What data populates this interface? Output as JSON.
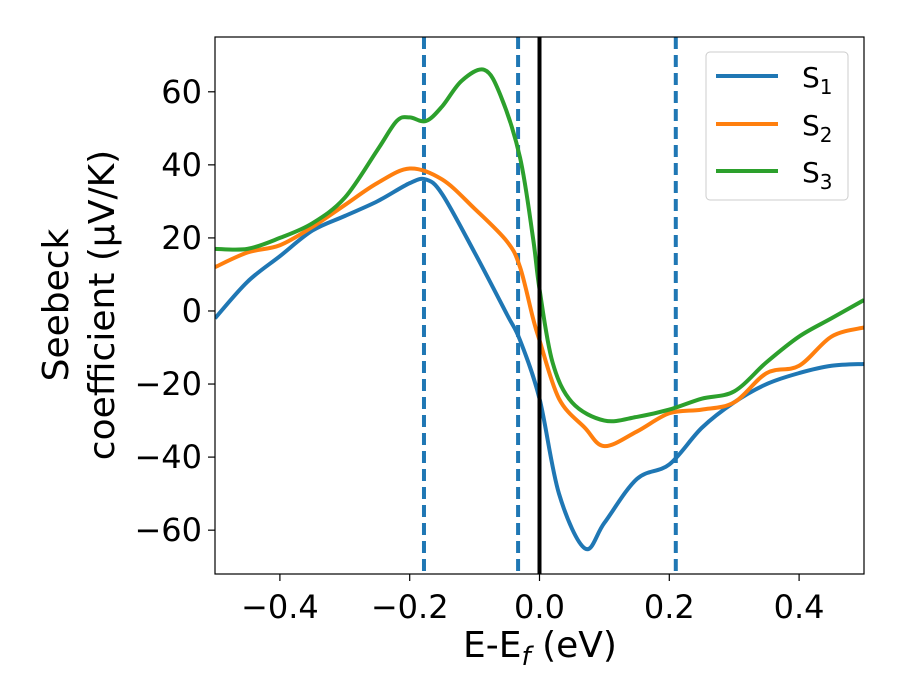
{
  "chart_data": {
    "type": "line",
    "xlabel_main": "E-E",
    "xlabel_sub": "f",
    "xlabel_unit": " (eV)",
    "ylabel_line1": "Seebeck",
    "ylabel_line2": "coefficient  (μV/K)",
    "xlim": [
      -0.5,
      0.5
    ],
    "ylim": [
      -72,
      75
    ],
    "xticks": [
      -0.4,
      -0.2,
      0.0,
      0.2,
      0.4
    ],
    "xtick_labels": [
      "−0.4",
      "−0.2",
      "0.0",
      "0.2",
      "0.4"
    ],
    "yticks": [
      60,
      40,
      20,
      0,
      -20,
      -40,
      -60
    ],
    "ytick_labels": [
      "60",
      "40",
      "20",
      "0",
      "−20",
      "−40",
      "−60"
    ],
    "vlines_dashed": [
      -0.178,
      -0.033,
      0.21
    ],
    "vline_solid": 0.0,
    "legend_position": "top-right",
    "series": [
      {
        "name": "S",
        "sub": "1",
        "color": "#1f77b4",
        "x": [
          -0.5,
          -0.45,
          -0.4,
          -0.35,
          -0.3,
          -0.25,
          -0.2,
          -0.175,
          -0.15,
          -0.1,
          -0.05,
          -0.03,
          0.0,
          0.03,
          0.07,
          0.1,
          0.15,
          0.2,
          0.25,
          0.3,
          0.35,
          0.4,
          0.45,
          0.5
        ],
        "y": [
          -2,
          8,
          15,
          22,
          26,
          30,
          35,
          36,
          32,
          16,
          -1,
          -8,
          -24,
          -50,
          -65,
          -58,
          -46,
          -42,
          -32,
          -25,
          -20,
          -17,
          -15,
          -14.5
        ]
      },
      {
        "name": "S",
        "sub": "2",
        "color": "#ff7f0e",
        "x": [
          -0.5,
          -0.45,
          -0.4,
          -0.35,
          -0.3,
          -0.25,
          -0.2,
          -0.15,
          -0.1,
          -0.05,
          -0.03,
          -0.01,
          0.0,
          0.03,
          0.07,
          0.1,
          0.15,
          0.2,
          0.25,
          0.3,
          0.35,
          0.4,
          0.45,
          0.5
        ],
        "y": [
          12,
          16,
          18,
          23,
          29,
          35,
          39,
          36,
          28,
          19,
          12,
          -2,
          -8,
          -24,
          -32,
          -37,
          -33,
          -28,
          -27,
          -25,
          -17,
          -15,
          -7,
          -4.5
        ]
      },
      {
        "name": "S",
        "sub": "3",
        "color": "#2ca02c",
        "x": [
          -0.5,
          -0.45,
          -0.4,
          -0.35,
          -0.3,
          -0.25,
          -0.22,
          -0.2,
          -0.175,
          -0.15,
          -0.12,
          -0.085,
          -0.06,
          -0.03,
          -0.01,
          0.0,
          0.02,
          0.05,
          0.1,
          0.15,
          0.2,
          0.25,
          0.3,
          0.35,
          0.4,
          0.45,
          0.5
        ],
        "y": [
          17,
          17,
          20,
          24,
          31,
          44,
          52,
          53,
          52,
          56,
          63,
          66,
          59,
          42,
          20,
          6,
          -14,
          -25,
          -30,
          -29,
          -27,
          -24,
          -22,
          -14,
          -7,
          -2,
          3
        ]
      }
    ]
  }
}
